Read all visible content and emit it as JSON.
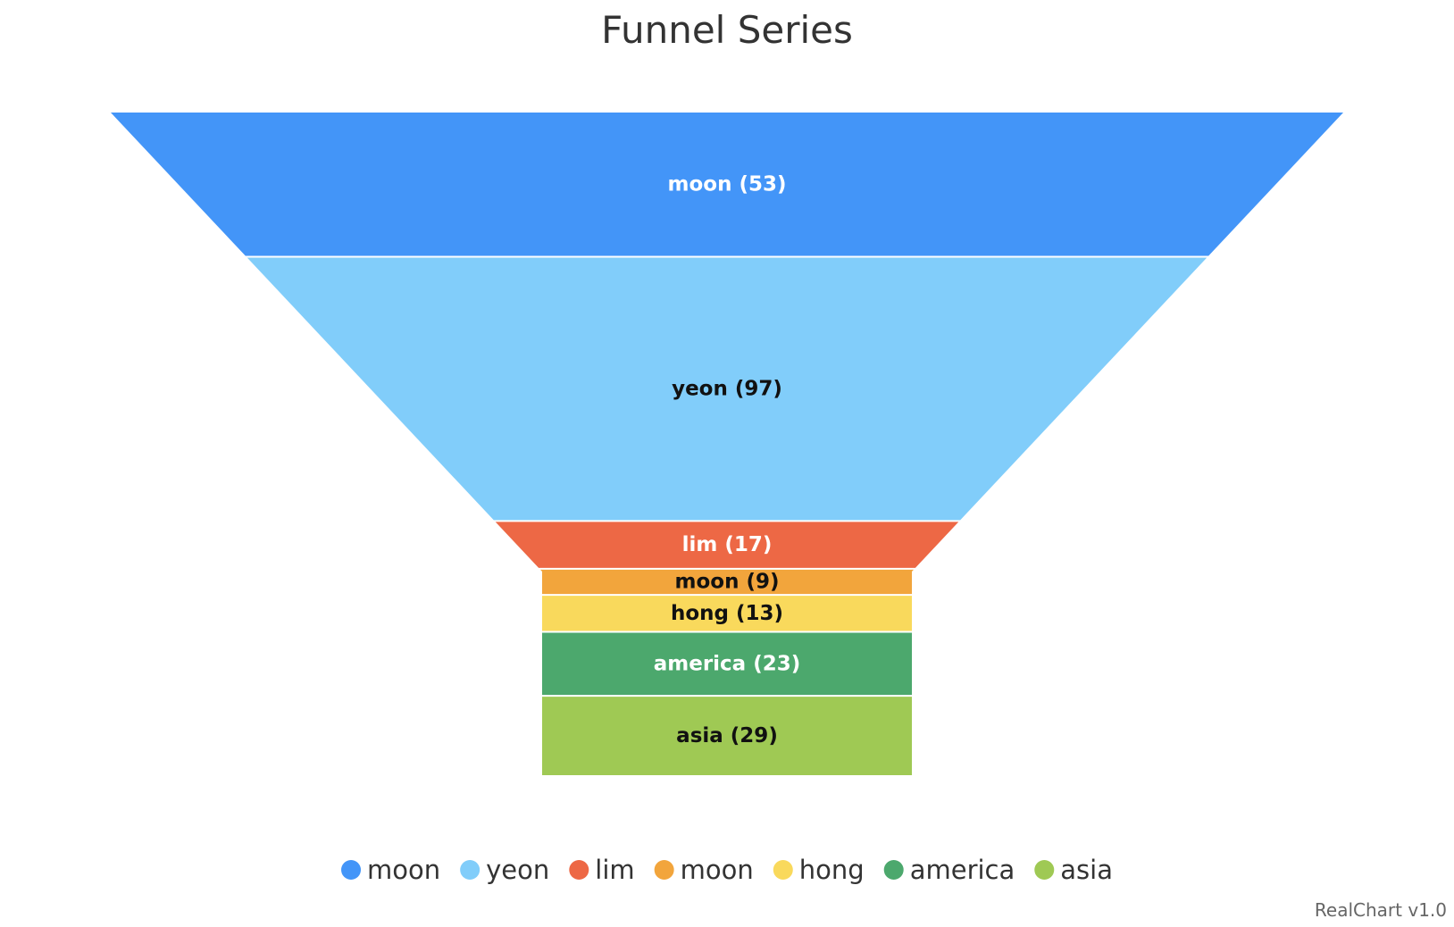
{
  "chart_data": {
    "type": "funnel",
    "title": "Funnel Series",
    "credit": "RealChart v1.0",
    "legend_position": "bottom",
    "label_format": "{name} ({value})",
    "points": [
      {
        "name": "moon",
        "value": 53,
        "color": "#4395f8",
        "label_color": "#ffffff"
      },
      {
        "name": "yeon",
        "value": 97,
        "color": "#81cdfa",
        "label_color": "#111111"
      },
      {
        "name": "lim",
        "value": 17,
        "color": "#ed6845",
        "label_color": "#ffffff"
      },
      {
        "name": "moon",
        "value": 9,
        "color": "#f2a53c",
        "label_color": "#111111"
      },
      {
        "name": "hong",
        "value": 13,
        "color": "#f9d95c",
        "label_color": "#111111"
      },
      {
        "name": "america",
        "value": 23,
        "color": "#4ca86d",
        "label_color": "#ffffff"
      },
      {
        "name": "asia",
        "value": 29,
        "color": "#9fc954",
        "label_color": "#111111"
      }
    ]
  }
}
